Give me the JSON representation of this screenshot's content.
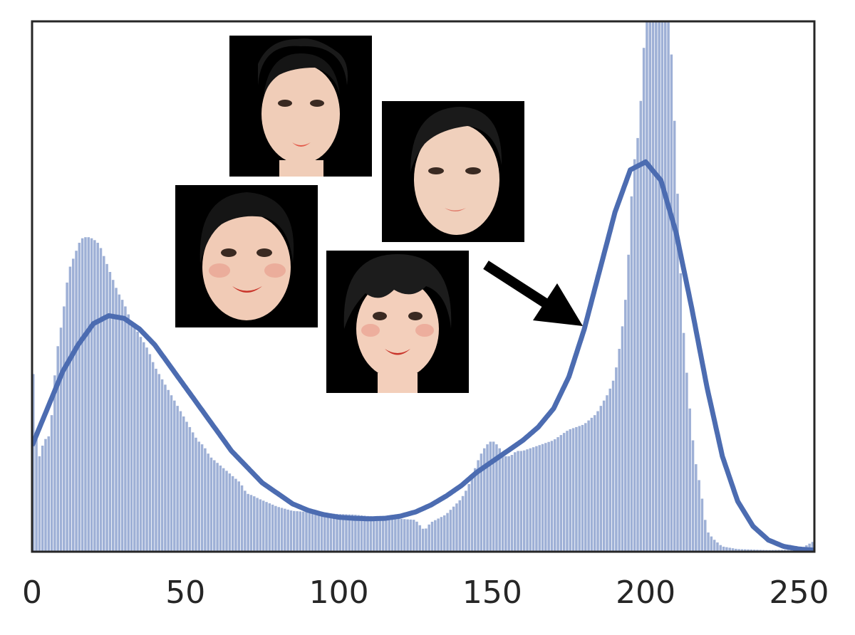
{
  "chart_data": {
    "type": "bar",
    "title": "",
    "xlabel": "",
    "ylabel": "",
    "xlim": [
      0,
      255
    ],
    "ylim": [
      0,
      1
    ],
    "grid": false,
    "legend": "none",
    "x_ticks": [
      "0",
      "50",
      "100",
      "150",
      "200",
      "250"
    ],
    "x_tick_values": [
      0,
      50,
      100,
      150,
      200,
      250
    ],
    "series": [
      {
        "type": "histogram",
        "color": "#9eb0d6",
        "bins": {
          "x": [
            0,
            2,
            4,
            6,
            8,
            10,
            12,
            14,
            16,
            18,
            20,
            22,
            24,
            26,
            28,
            30,
            32,
            34,
            36,
            38,
            40,
            42,
            44,
            46,
            48,
            50,
            52,
            54,
            56,
            58,
            60,
            62,
            64,
            66,
            68,
            70,
            72,
            74,
            76,
            78,
            80,
            85,
            90,
            95,
            100,
            105,
            110,
            115,
            120,
            125,
            128,
            130,
            135,
            140,
            142,
            144,
            146,
            148,
            150,
            152,
            154,
            156,
            158,
            160,
            165,
            170,
            175,
            180,
            182,
            184,
            186,
            188,
            190,
            192,
            193,
            194,
            195,
            196,
            198,
            200,
            202,
            204,
            206,
            208,
            210,
            212,
            214,
            216,
            218,
            220,
            222,
            225,
            230,
            240,
            250,
            255
          ],
          "y": [
            0.39,
            0.17,
            0.21,
            0.22,
            0.37,
            0.44,
            0.53,
            0.56,
            0.59,
            0.594,
            0.59,
            0.58,
            0.55,
            0.52,
            0.49,
            0.47,
            0.44,
            0.42,
            0.4,
            0.38,
            0.35,
            0.33,
            0.31,
            0.29,
            0.27,
            0.25,
            0.23,
            0.21,
            0.2,
            0.18,
            0.17,
            0.16,
            0.15,
            0.14,
            0.13,
            0.11,
            0.106,
            0.1,
            0.095,
            0.09,
            0.085,
            0.077,
            0.075,
            0.073,
            0.071,
            0.07,
            0.067,
            0.065,
            0.062,
            0.06,
            0.04,
            0.055,
            0.07,
            0.1,
            0.12,
            0.15,
            0.18,
            0.2,
            0.21,
            0.2,
            0.18,
            0.18,
            0.19,
            0.19,
            0.2,
            0.21,
            0.23,
            0.24,
            0.25,
            0.26,
            0.28,
            0.3,
            0.33,
            0.4,
            0.45,
            0.5,
            0.62,
            0.72,
            0.8,
            1.0,
            1.0,
            1.0,
            1.0,
            1.0,
            0.75,
            0.45,
            0.3,
            0.18,
            0.12,
            0.04,
            0.025,
            0.01,
            0.005,
            0.003,
            0.004,
            0.02
          ]
        }
      },
      {
        "type": "kde",
        "color": "#4c6cb1",
        "x": [
          0,
          5,
          10,
          15,
          20,
          25,
          30,
          35,
          40,
          45,
          50,
          55,
          60,
          65,
          70,
          75,
          80,
          85,
          90,
          95,
          100,
          105,
          110,
          115,
          120,
          125,
          130,
          135,
          140,
          145,
          150,
          155,
          160,
          165,
          170,
          175,
          180,
          185,
          190,
          195,
          200,
          205,
          210,
          215,
          220,
          225,
          230,
          235,
          240,
          245,
          250,
          255
        ],
        "y": [
          0.2,
          0.27,
          0.34,
          0.39,
          0.43,
          0.445,
          0.44,
          0.42,
          0.39,
          0.35,
          0.31,
          0.27,
          0.23,
          0.19,
          0.16,
          0.13,
          0.11,
          0.09,
          0.078,
          0.07,
          0.065,
          0.063,
          0.062,
          0.063,
          0.067,
          0.075,
          0.088,
          0.105,
          0.125,
          0.15,
          0.17,
          0.19,
          0.21,
          0.235,
          0.27,
          0.33,
          0.42,
          0.53,
          0.64,
          0.72,
          0.735,
          0.7,
          0.6,
          0.46,
          0.31,
          0.18,
          0.095,
          0.048,
          0.022,
          0.01,
          0.005,
          0.003
        ]
      }
    ],
    "annotations": [
      {
        "type": "image",
        "name": "face-thumbnail-1"
      },
      {
        "type": "image",
        "name": "face-thumbnail-2"
      },
      {
        "type": "image",
        "name": "face-thumbnail-3"
      },
      {
        "type": "image",
        "name": "face-thumbnail-4"
      },
      {
        "type": "arrow",
        "name": "pointer-arrow",
        "color": "#000000"
      }
    ]
  }
}
